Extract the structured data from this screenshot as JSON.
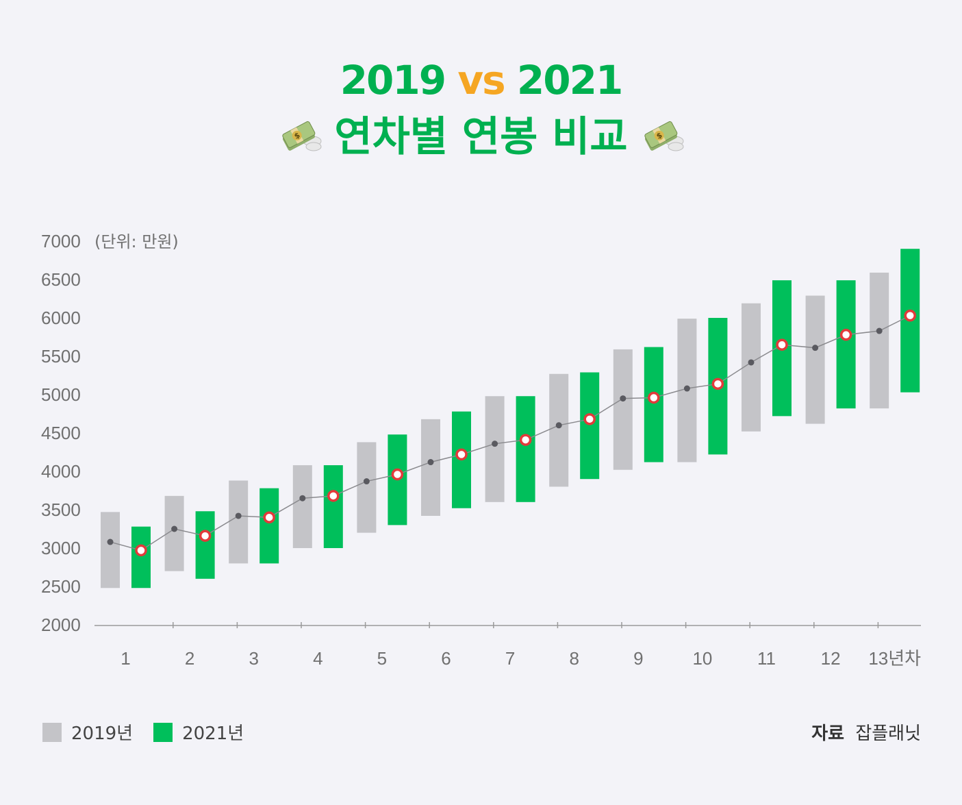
{
  "title": {
    "line1_a": "2019",
    "line1_vs": "vs",
    "line1_b": "2021",
    "line2": "연차별 연봉 비교",
    "icon": "money-with-wings-icon"
  },
  "colors": {
    "gray": "#c4c4c8",
    "green": "#00bf5b",
    "accent": "#f5a623",
    "marker": "#e23a3a"
  },
  "chart_data": {
    "type": "range-bar-line",
    "unit_label": "(단위: 만원)",
    "ylim": [
      2000,
      7000
    ],
    "yticks": [
      7000,
      6500,
      6000,
      5500,
      5000,
      4500,
      4000,
      3500,
      3000,
      2500,
      2000
    ],
    "categories": [
      "1",
      "2",
      "3",
      "4",
      "5",
      "6",
      "7",
      "8",
      "9",
      "10",
      "11",
      "12",
      "13년차"
    ],
    "series": [
      {
        "name": "2019년",
        "low": [
          2480,
          2700,
          2800,
          3000,
          3200,
          3420,
          3600,
          3800,
          4020,
          4120,
          4520,
          4620,
          4820
        ],
        "high": [
          3470,
          3680,
          3880,
          4080,
          4380,
          4680,
          4980,
          5270,
          5590,
          5990,
          6190,
          6290,
          6590
        ],
        "avg": [
          3080,
          3250,
          3420,
          3650,
          3870,
          4120,
          4360,
          4600,
          4950,
          5080,
          5420,
          5610,
          5830
        ]
      },
      {
        "name": "2021년",
        "low": [
          2480,
          2600,
          2800,
          3000,
          3300,
          3520,
          3600,
          3900,
          4120,
          4220,
          4720,
          4820,
          5030
        ],
        "high": [
          3280,
          3480,
          3780,
          4080,
          4480,
          4780,
          4980,
          5290,
          5620,
          6000,
          6490,
          6490,
          6900
        ],
        "avg": [
          2970,
          3160,
          3400,
          3680,
          3960,
          4220,
          4410,
          4680,
          4960,
          5140,
          5650,
          5780,
          6030
        ]
      }
    ]
  },
  "legend": {
    "label_2019": "2019년",
    "label_2021": "2021년"
  },
  "source": {
    "key": "자료",
    "value": "잡플래닛"
  }
}
